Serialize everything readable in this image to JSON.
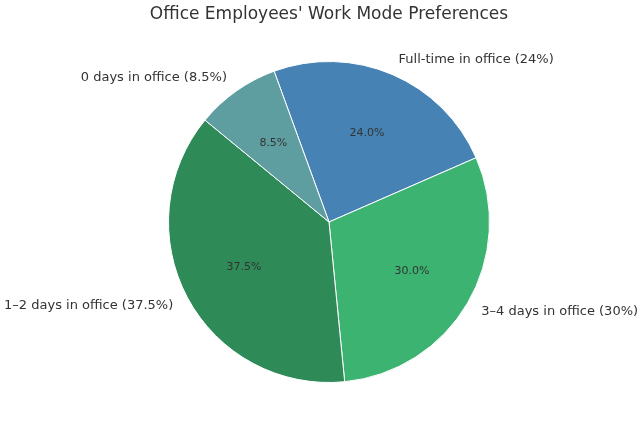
{
  "chart_data": {
    "type": "pie",
    "title": "Office Employees' Work Mode Preferences",
    "categories": [
      "Full-time in office (24%)",
      "3–4 days in office (30%)",
      "1–2 days in office (37.5%)",
      "0 days in office (8.5%)"
    ],
    "values": [
      24,
      30,
      37.5,
      8.5
    ],
    "value_labels": [
      "24.0%",
      "30.0%",
      "37.5%",
      "8.5%"
    ],
    "colors": [
      "#4682b4",
      "#3cb371",
      "#2e8b57",
      "#5f9ea0"
    ],
    "data_labels": true
  }
}
